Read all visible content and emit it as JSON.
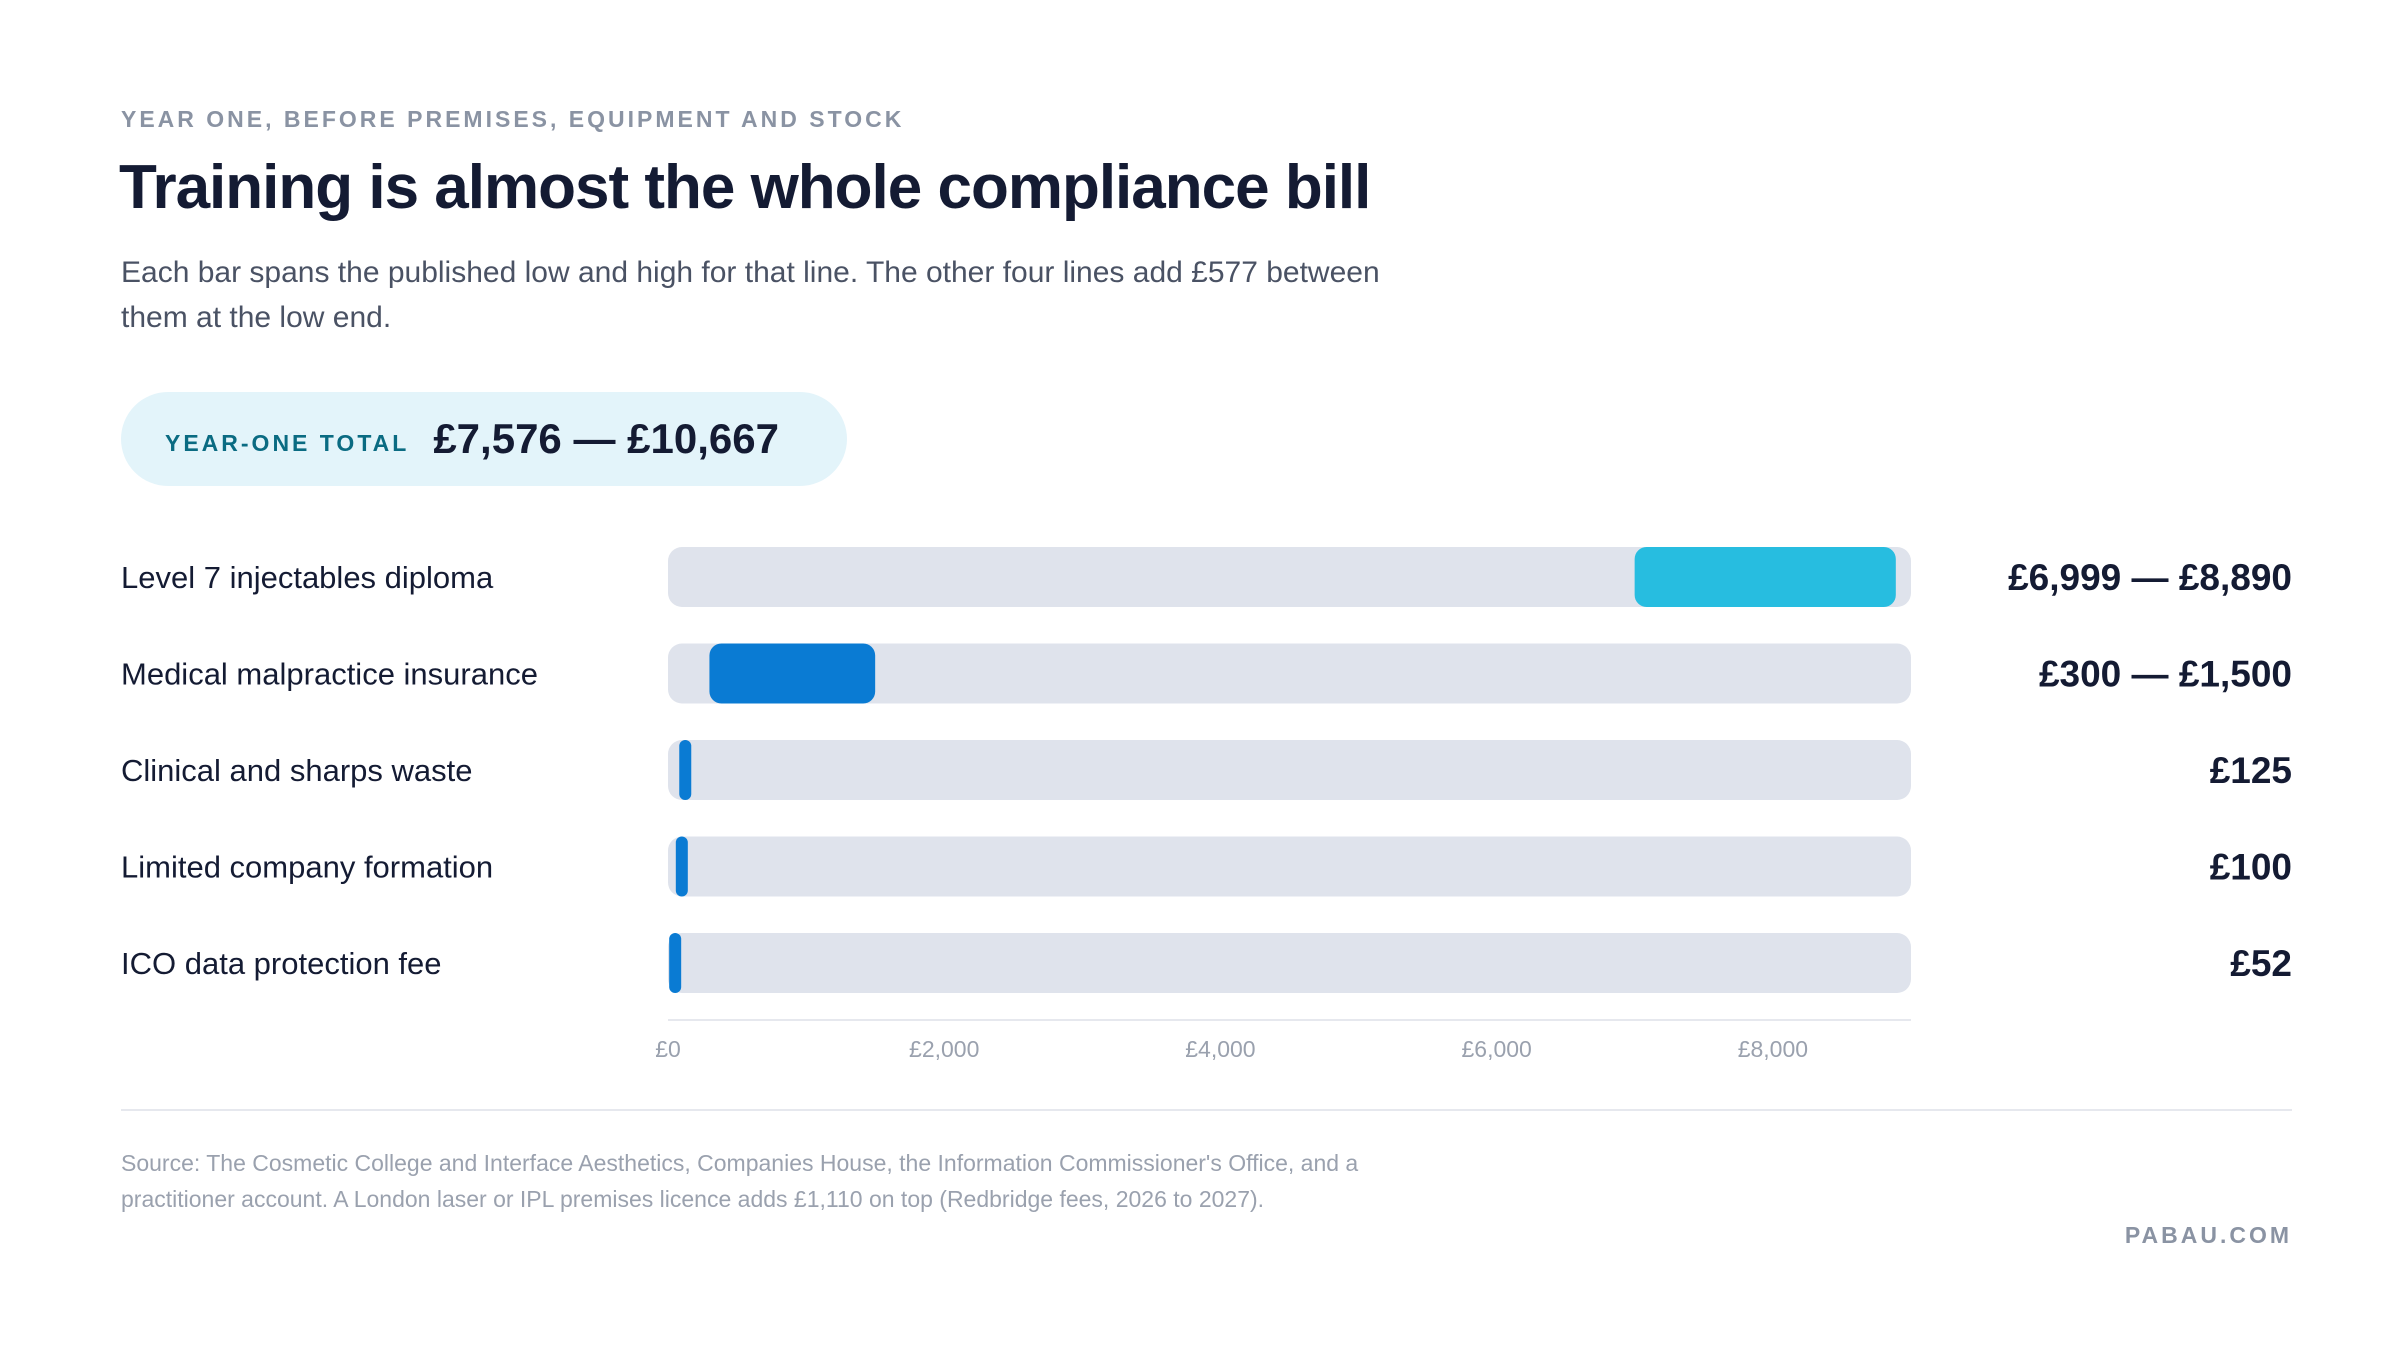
{
  "header": {
    "kicker": "YEAR ONE, BEFORE PREMISES, EQUIPMENT AND STOCK",
    "title": "Training is almost the whole compliance bill",
    "subtitle": "Each bar spans the published low and high for that line. The other four lines add £577 between them at the low end."
  },
  "total": {
    "label": "YEAR-ONE TOTAL",
    "value": "£7,576 — £10,667"
  },
  "chart_data": {
    "type": "bar",
    "orientation": "horizontal-range",
    "title": "Training is almost the whole compliance bill",
    "categories": [
      "Level 7 injectables diploma",
      "Medical malpractice insurance",
      "Clinical and sharps waste",
      "Limited company formation",
      "ICO data protection fee"
    ],
    "low": [
      6999,
      300,
      125,
      100,
      52
    ],
    "high": [
      8890,
      1500,
      125,
      100,
      52
    ],
    "value_labels": [
      "£6,999 — £8,890",
      "£300 — £1,500",
      "£125",
      "£100",
      "£52"
    ],
    "xlim": [
      0,
      9000
    ],
    "x_ticks": [
      0,
      2000,
      4000,
      6000,
      8000
    ],
    "x_tick_labels": [
      "£0",
      "£2,000",
      "£4,000",
      "£6,000",
      "£8,000"
    ],
    "grid": false,
    "colors": {
      "highlight": "#27bde0",
      "bar": "#0a7bd3",
      "track": "#dfe3ec",
      "label": "#141b33",
      "tick": "#9aa1ae"
    },
    "highlight_index": 0
  },
  "footer": {
    "source": "Source: The Cosmetic College and Interface Aesthetics, Companies House, the Information Commissioner's Office, and a practitioner account. A London laser or IPL premises licence adds £1,110 on top (Redbridge fees, 2026 to 2027).",
    "brand": "PABAU.COM"
  }
}
